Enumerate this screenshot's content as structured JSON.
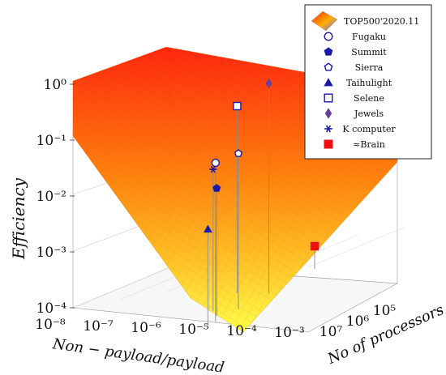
{
  "chart_data": {
    "type": "surface3d",
    "axes": {
      "z_label": "Efficiency",
      "x_label": "Non − payload/payload",
      "y_label": "No of processors",
      "z_ticks": [
        {
          "value": -4,
          "label": "10⁻⁴"
        },
        {
          "value": -3,
          "label": "10⁻³"
        },
        {
          "value": -2,
          "label": "10⁻²"
        },
        {
          "value": -1,
          "label": "10⁻¹"
        },
        {
          "value": 0,
          "label": "10⁰"
        }
      ],
      "x_ticks": [
        {
          "value": -8,
          "label": "10⁻⁸"
        },
        {
          "value": -7,
          "label": "10⁻⁷"
        },
        {
          "value": -6,
          "label": "10⁻⁶"
        },
        {
          "value": -5,
          "label": "10⁻⁵"
        },
        {
          "value": -4,
          "label": "10⁻⁴"
        },
        {
          "value": -3,
          "label": "10⁻³"
        }
      ],
      "y_ticks": [
        {
          "value": 5,
          "label": "10⁵"
        },
        {
          "value": 6,
          "label": "10⁶"
        },
        {
          "value": 7,
          "label": "10⁷"
        }
      ],
      "x_range_log10": [
        -8,
        -3
      ],
      "y_range_log10": [
        4,
        7
      ],
      "z_range_log10": [
        -4,
        0
      ],
      "grid": true
    },
    "surface": {
      "name": "TOP500'2020.11",
      "colormap": [
        "#ffff33",
        "#ff9900",
        "#ff2200"
      ]
    },
    "legend_position": "top-right",
    "series": [
      {
        "name": "Fugaku",
        "marker": "circle-open",
        "color": "#1a1aa6",
        "x": -6.9,
        "y": 6.8,
        "z": -1.2
      },
      {
        "name": "Summit",
        "marker": "pentagon-fill",
        "color": "#1a1aa6",
        "x": -6.6,
        "y": 6.4,
        "z": -1.75
      },
      {
        "name": "Sierra",
        "marker": "pentagon-open",
        "color": "#1a1aa6",
        "x": -6.0,
        "y": 6.2,
        "z": -1.25
      },
      {
        "name": "Taihulight",
        "marker": "triangle-fill",
        "color": "#1a1aa6",
        "x": -7.2,
        "y": 7.0,
        "z": -2.3
      },
      {
        "name": "Selene",
        "marker": "square-open",
        "color": "#1a1aa6",
        "x": -5.2,
        "y": 5.0,
        "z": -0.7
      },
      {
        "name": "Jewels",
        "marker": "diamond-fill",
        "color": "#6a3fa0",
        "x": -4.8,
        "y": 5.4,
        "z": -0.3
      },
      {
        "name": "K computer",
        "marker": "star",
        "color": "#1a1aa6",
        "x": -6.4,
        "y": 6.0,
        "z": -1.5
      },
      {
        "name": "≈Brain",
        "marker": "square-fill",
        "color": "#ee1111",
        "x": -3.0,
        "y": 4.2,
        "z": -3.6
      }
    ]
  }
}
